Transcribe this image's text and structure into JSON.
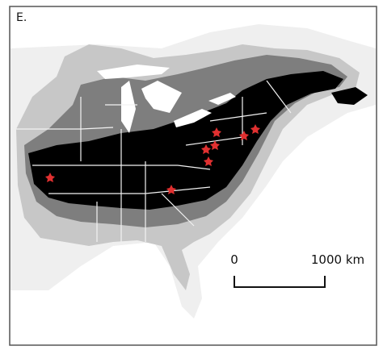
{
  "panel": {
    "label": "E.",
    "scale_bar": {
      "start_label": "0",
      "end_label": "1000 km"
    }
  }
}
